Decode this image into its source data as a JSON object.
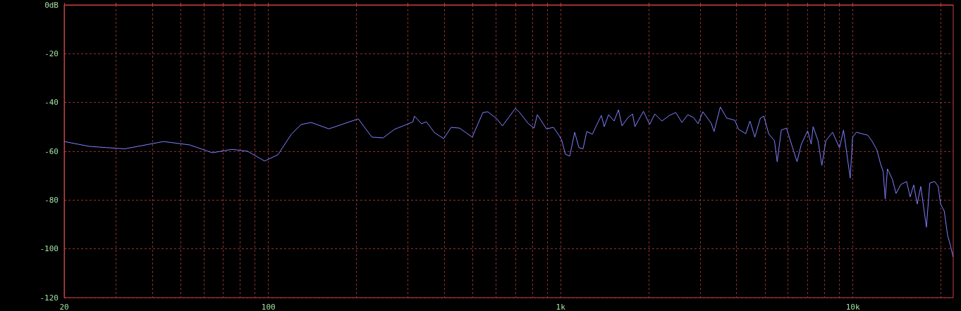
{
  "chart_data": {
    "type": "line",
    "log": "x",
    "grid": true,
    "marker": "none",
    "line_style": "solid",
    "xlim": [
      20,
      22050
    ],
    "ylim": [
      -120,
      0
    ],
    "xticks": [
      20,
      {
        "value": 30,
        "label": null
      },
      {
        "value": 40,
        "label": null
      },
      {
        "value": 50,
        "label": null
      },
      {
        "value": 60,
        "label": null
      },
      {
        "value": 70,
        "label": null
      },
      {
        "value": 80,
        "label": null
      },
      {
        "value": 90,
        "label": null
      },
      100,
      {
        "value": 200,
        "label": null
      },
      {
        "value": 300,
        "label": null
      },
      {
        "value": 400,
        "label": null
      },
      {
        "value": 500,
        "label": null
      },
      {
        "value": 600,
        "label": null
      },
      {
        "value": 700,
        "label": null
      },
      {
        "value": 800,
        "label": null
      },
      {
        "value": 900,
        "label": null
      },
      {
        "value": 1000,
        "label": "1k"
      },
      {
        "value": 2000,
        "label": null
      },
      {
        "value": 3000,
        "label": null
      },
      {
        "value": 4000,
        "label": null
      },
      {
        "value": 5000,
        "label": null
      },
      {
        "value": 6000,
        "label": null
      },
      {
        "value": 7000,
        "label": null
      },
      {
        "value": 8000,
        "label": null
      },
      {
        "value": 9000,
        "label": null
      },
      {
        "value": 10000,
        "label": "10k"
      },
      {
        "value": 20000,
        "label": null
      }
    ],
    "yticks": [
      {
        "value": 0,
        "label": "0dB"
      },
      -20,
      -40,
      -60,
      -80,
      -100,
      -120
    ],
    "series": [
      {
        "color": "#8080ff",
        "x": [
          20,
          24.4,
          32.2,
          43.8,
          53.8,
          64.3,
          75,
          84.9,
          97,
          107.8,
          119.8,
          129.5,
          140,
          161,
          203,
          226,
          247,
          270,
          312,
          316,
          334,
          347,
          371,
          398,
          422,
          451,
          498,
          542,
          563,
          605,
          632,
          669,
          700,
          724,
          773,
          811,
          832,
          894,
          945,
          986,
          1008,
          1038,
          1074,
          1117,
          1155,
          1193,
          1228,
          1284,
          1327,
          1378,
          1410,
          1459,
          1524,
          1577,
          1622,
          1698,
          1762,
          1795,
          1920,
          2016,
          2100,
          2220,
          2355,
          2478,
          2600,
          2723,
          2850,
          2954,
          3066,
          3274,
          3349,
          3518,
          3700,
          3948,
          4060,
          4298,
          4444,
          4618,
          4824,
          4957,
          5150,
          5390,
          5508,
          5690,
          5925,
          6090,
          6440,
          6660,
          7000,
          7200,
          7310,
          7600,
          7830,
          8080,
          8520,
          9000,
          9290,
          9790,
          9980,
          10280,
          10740,
          11240,
          11610,
          12080,
          12420,
          12700,
          12900,
          13130,
          13650,
          14050,
          14600,
          15270,
          15700,
          16150,
          16600,
          17070,
          17850,
          18330,
          19060,
          19590,
          19950,
          20540,
          21100,
          21450,
          22030
        ],
        "values": [
          -56,
          -58,
          -59,
          -56,
          -57.4,
          -60.6,
          -59.2,
          -60,
          -64,
          -61.4,
          -53,
          -49,
          -48.2,
          -50.8,
          -46.7,
          -54.2,
          -54.5,
          -51,
          -48,
          -45.6,
          -48.7,
          -47.9,
          -52.5,
          -54.8,
          -50.2,
          -50.5,
          -54.2,
          -44.1,
          -43.8,
          -46.7,
          -49.6,
          -45.6,
          -42.4,
          -44.1,
          -48.5,
          -50.5,
          -45,
          -50.8,
          -50.2,
          -53.4,
          -55.4,
          -61.2,
          -62,
          -52.2,
          -58.5,
          -59,
          -51.9,
          -53,
          -49.3,
          -45.3,
          -49.9,
          -45,
          -47.6,
          -43,
          -49.6,
          -46.2,
          -44.7,
          -49.9,
          -43.6,
          -49,
          -44.7,
          -47.6,
          -45.3,
          -44.1,
          -48.2,
          -45,
          -46.2,
          -48.7,
          -43.8,
          -48.5,
          -51.9,
          -41.8,
          -46.4,
          -47.3,
          -51,
          -52.8,
          -47.6,
          -54.2,
          -46.4,
          -45.6,
          -52.8,
          -55.7,
          -64.3,
          -51.3,
          -50.5,
          -55.1,
          -64.3,
          -57.1,
          -51.6,
          -57.1,
          -49.9,
          -55.7,
          -65.8,
          -55.7,
          -52.2,
          -58.6,
          -51.3,
          -71,
          -54.2,
          -52.2,
          -52.8,
          -53.4,
          -55.7,
          -59.4,
          -64.9,
          -68.4,
          -79.6,
          -67.2,
          -71.5,
          -77.3,
          -73.6,
          -72.4,
          -78.7,
          -73.8,
          -81.6,
          -74.4,
          -91.1,
          -73,
          -72.4,
          -74.4,
          -81.6,
          -84.5,
          -94.6,
          -97.5,
          -103.3
        ]
      }
    ]
  }
}
